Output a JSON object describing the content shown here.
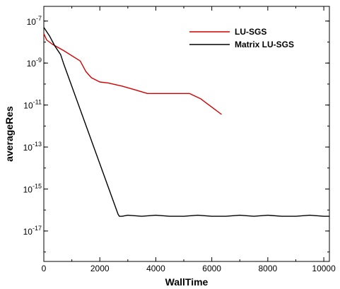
{
  "chart_data": {
    "type": "line",
    "title": "",
    "xlabel": "WallTime",
    "ylabel": "averageRes",
    "xlim": [
      0,
      10200
    ],
    "xticks": [
      0,
      2000,
      4000,
      6000,
      8000,
      10000
    ],
    "xtick_labels": [
      "0",
      "2000",
      "4000",
      "6000",
      "8000",
      "10000"
    ],
    "ylim_log10": [
      -18.45,
      -6.3
    ],
    "yscale": "log",
    "yticks_log10": [
      -7,
      -9,
      -11,
      -13,
      -15,
      -17
    ],
    "ytick_labels": [
      {
        "base": "10",
        "exp": "-7"
      },
      {
        "base": "10",
        "exp": "-9"
      },
      {
        "base": "10",
        "exp": "-11"
      },
      {
        "base": "10",
        "exp": "-13"
      },
      {
        "base": "10",
        "exp": "-15"
      },
      {
        "base": "10",
        "exp": "-17"
      }
    ],
    "grid": false,
    "legend_position": "top-right",
    "series": [
      {
        "name": "LU-SGS",
        "color": "#d40000",
        "x": [
          0,
          100,
          300,
          700,
          1300,
          1500,
          1700,
          2000,
          2300,
          2800,
          3200,
          3700,
          4500,
          5200,
          5600,
          5800,
          6100,
          6350
        ],
        "y_log10": [
          -7.6,
          -7.9,
          -8.1,
          -8.4,
          -8.9,
          -9.4,
          -9.7,
          -9.9,
          -9.95,
          -10.1,
          -10.25,
          -10.45,
          -10.45,
          -10.45,
          -10.7,
          -10.9,
          -11.2,
          -11.45
        ]
      },
      {
        "name": "Matrix LU-SGS",
        "color": "#000000",
        "x": [
          0,
          200,
          400,
          600,
          700,
          2650,
          2700,
          2800,
          3000,
          3500,
          4000,
          4500,
          5000,
          5500,
          6000,
          6500,
          7000,
          7500,
          8000,
          8500,
          9000,
          9500,
          10000,
          10200
        ],
        "y_log10": [
          -7.3,
          -7.7,
          -8.2,
          -8.6,
          -9.0,
          -16.2,
          -16.3,
          -16.3,
          -16.25,
          -16.3,
          -16.25,
          -16.3,
          -16.3,
          -16.25,
          -16.3,
          -16.3,
          -16.25,
          -16.3,
          -16.25,
          -16.3,
          -16.3,
          -16.25,
          -16.3,
          -16.3
        ]
      }
    ]
  }
}
